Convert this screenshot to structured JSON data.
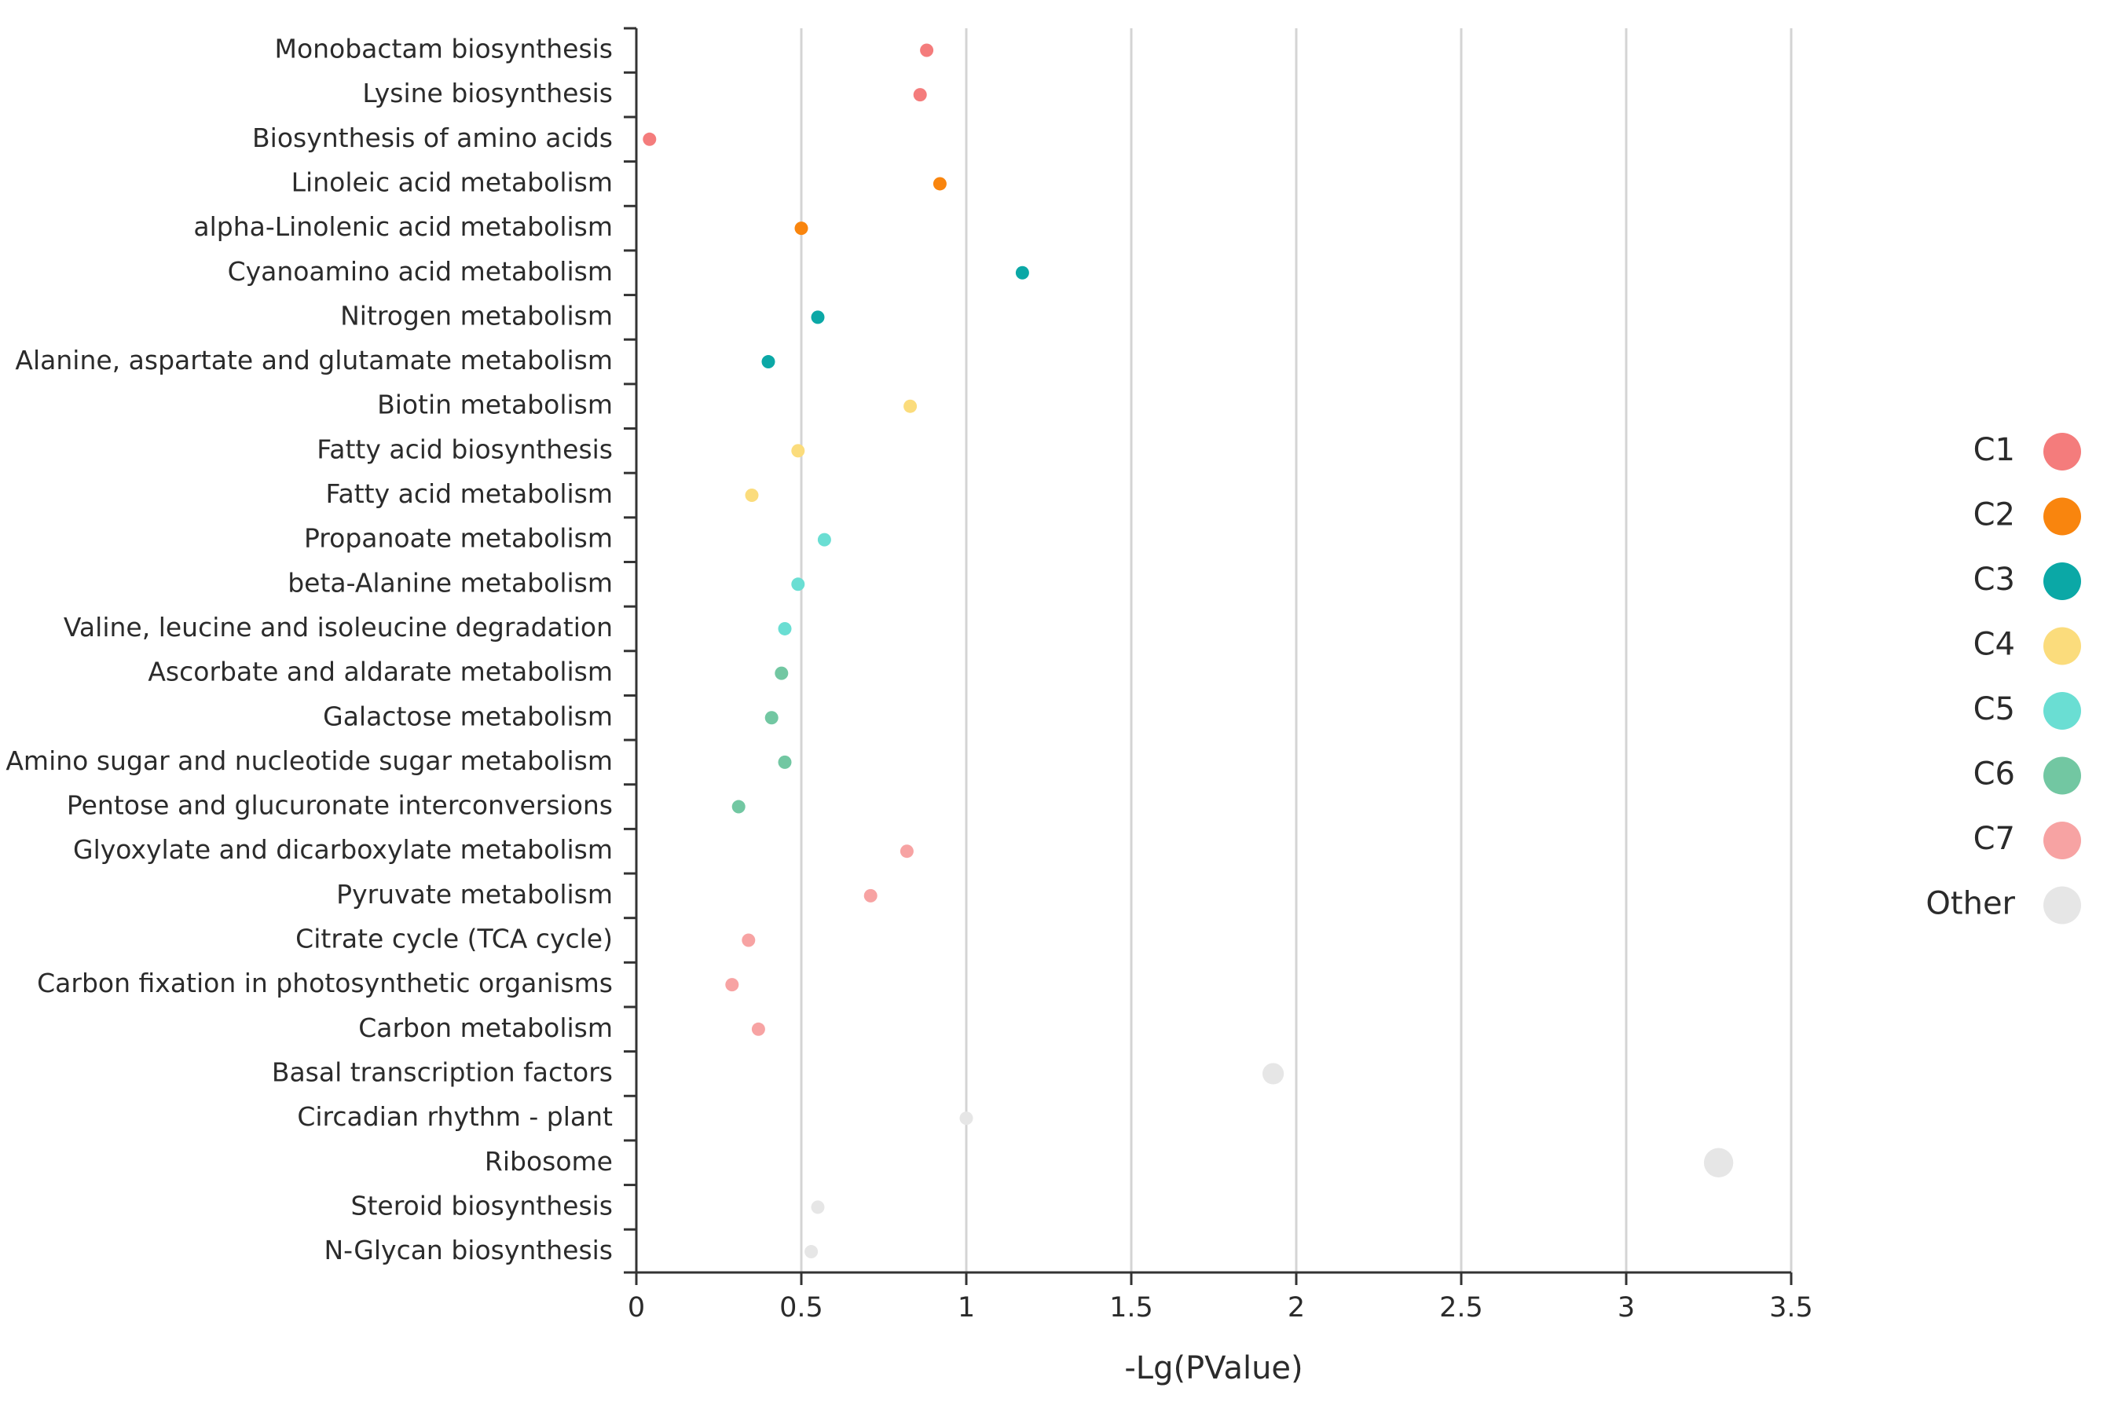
{
  "chart_data": {
    "type": "scatter",
    "xlabel": "-Lg(PValue)",
    "xlim": [
      0,
      3.5
    ],
    "xticks": [
      0,
      0.5,
      1,
      1.5,
      2,
      2.5,
      3,
      3.5
    ],
    "xtick_labels": [
      "0",
      "0.5",
      "1",
      "1.5",
      "2",
      "2.5",
      "3",
      "3.5"
    ],
    "grid": "vertical",
    "legend": "right",
    "legend_entries": [
      {
        "name": "C1",
        "color": "#F47C7C"
      },
      {
        "name": "C2",
        "color": "#F9850E"
      },
      {
        "name": "C3",
        "color": "#0BA8A6"
      },
      {
        "name": "C4",
        "color": "#FBDC7C"
      },
      {
        "name": "C5",
        "color": "#6ADED3"
      },
      {
        "name": "C6",
        "color": "#72C7A2"
      },
      {
        "name": "C7",
        "color": "#F7A3A3"
      },
      {
        "name": "Other",
        "color": "#E6E6E6"
      }
    ],
    "points": [
      {
        "category": "Monobactam biosynthesis",
        "x": 0.88,
        "group": "C1",
        "size": 1
      },
      {
        "category": "Lysine biosynthesis",
        "x": 0.86,
        "group": "C1",
        "size": 1
      },
      {
        "category": "Biosynthesis of amino acids",
        "x": 0.04,
        "group": "C1",
        "size": 1
      },
      {
        "category": "Linoleic acid metabolism",
        "x": 0.92,
        "group": "C2",
        "size": 1
      },
      {
        "category": "alpha-Linolenic acid metabolism",
        "x": 0.5,
        "group": "C2",
        "size": 1
      },
      {
        "category": "Cyanoamino acid metabolism",
        "x": 1.17,
        "group": "C3",
        "size": 1
      },
      {
        "category": "Nitrogen metabolism",
        "x": 0.55,
        "group": "C3",
        "size": 1
      },
      {
        "category": "Alanine, aspartate and glutamate metabolism",
        "x": 0.4,
        "group": "C3",
        "size": 1
      },
      {
        "category": "Biotin metabolism",
        "x": 0.83,
        "group": "C4",
        "size": 1
      },
      {
        "category": "Fatty acid biosynthesis",
        "x": 0.49,
        "group": "C4",
        "size": 1
      },
      {
        "category": "Fatty acid metabolism",
        "x": 0.35,
        "group": "C4",
        "size": 1
      },
      {
        "category": "Propanoate metabolism",
        "x": 0.57,
        "group": "C5",
        "size": 1
      },
      {
        "category": "beta-Alanine metabolism",
        "x": 0.49,
        "group": "C5",
        "size": 1
      },
      {
        "category": "Valine, leucine and isoleucine degradation",
        "x": 0.45,
        "group": "C5",
        "size": 1
      },
      {
        "category": "Ascorbate and aldarate metabolism",
        "x": 0.44,
        "group": "C6",
        "size": 1
      },
      {
        "category": "Galactose metabolism",
        "x": 0.41,
        "group": "C6",
        "size": 1
      },
      {
        "category": "Amino sugar and nucleotide sugar metabolism",
        "x": 0.45,
        "group": "C6",
        "size": 1
      },
      {
        "category": "Pentose and glucuronate interconversions",
        "x": 0.31,
        "group": "C6",
        "size": 1
      },
      {
        "category": "Glyoxylate and dicarboxylate metabolism",
        "x": 0.82,
        "group": "C7",
        "size": 1
      },
      {
        "category": "Pyruvate metabolism",
        "x": 0.71,
        "group": "C7",
        "size": 1
      },
      {
        "category": "Citrate cycle (TCA cycle)",
        "x": 0.34,
        "group": "C7",
        "size": 1
      },
      {
        "category": "Carbon fixation in photosynthetic organisms",
        "x": 0.29,
        "group": "C7",
        "size": 1
      },
      {
        "category": "Carbon metabolism",
        "x": 0.37,
        "group": "C7",
        "size": 1
      },
      {
        "category": "Basal transcription factors",
        "x": 1.93,
        "group": "Other",
        "size": 1.6
      },
      {
        "category": "Circadian rhythm - plant",
        "x": 1.0,
        "group": "Other",
        "size": 1
      },
      {
        "category": "Ribosome",
        "x": 3.28,
        "group": "Other",
        "size": 2.2
      },
      {
        "category": "Steroid biosynthesis",
        "x": 0.55,
        "group": "Other",
        "size": 1
      },
      {
        "category": "N-Glycan biosynthesis",
        "x": 0.53,
        "group": "Other",
        "size": 1
      }
    ]
  }
}
